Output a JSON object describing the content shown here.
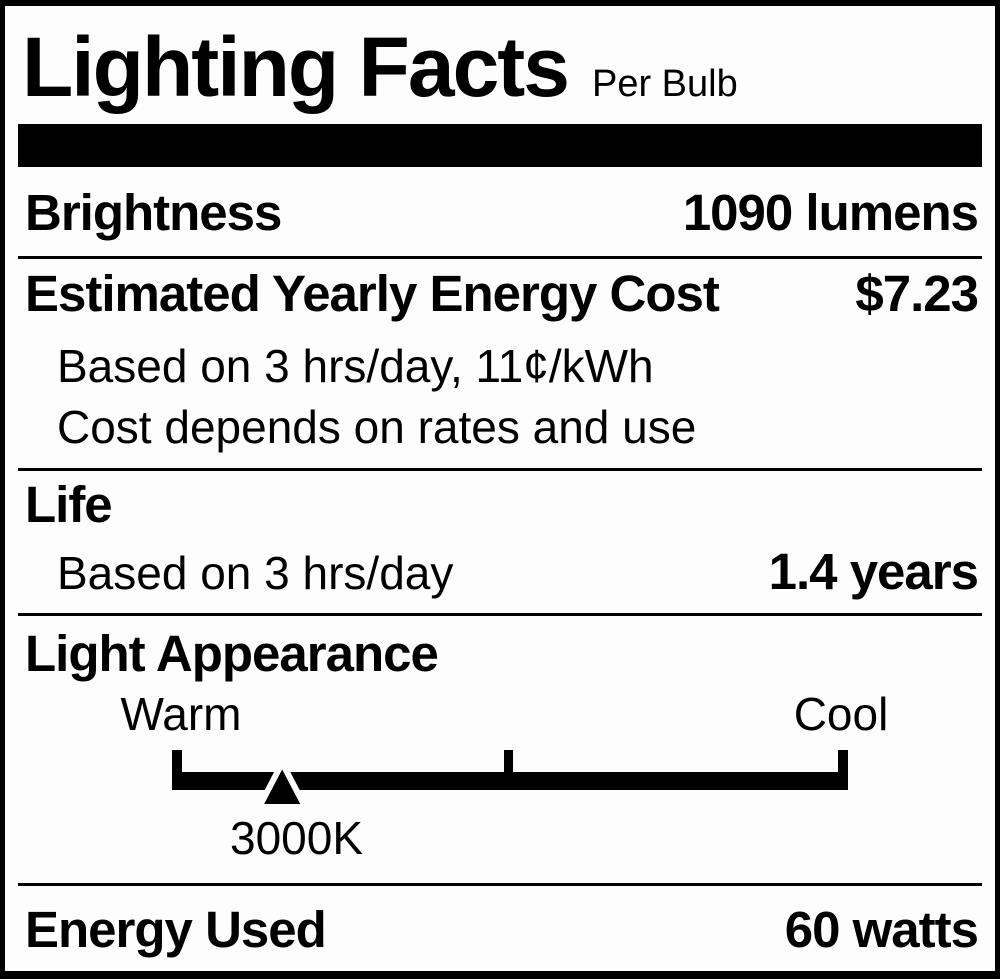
{
  "colors": {
    "ink": "#000000",
    "background": "#fdfdfd"
  },
  "header": {
    "title": "Lighting Facts",
    "subtitle": "Per Bulb"
  },
  "brightness": {
    "label": "Brightness",
    "value": "1090 lumens"
  },
  "energy_cost": {
    "label": "Estimated Yearly Energy Cost",
    "value": "$7.23",
    "note1": "Based on 3 hrs/day, 11¢/kWh",
    "note2": "Cost depends on rates and use"
  },
  "life": {
    "label": "Life",
    "note": "Based on 3 hrs/day",
    "value": "1.4 years"
  },
  "light_appearance": {
    "label": "Light Appearance",
    "warm_label": "Warm",
    "cool_label": "Cool",
    "marker_value": "3000K",
    "marker_position_pct": 16.3
  },
  "energy_used": {
    "label": "Energy Used",
    "value": "60 watts"
  }
}
